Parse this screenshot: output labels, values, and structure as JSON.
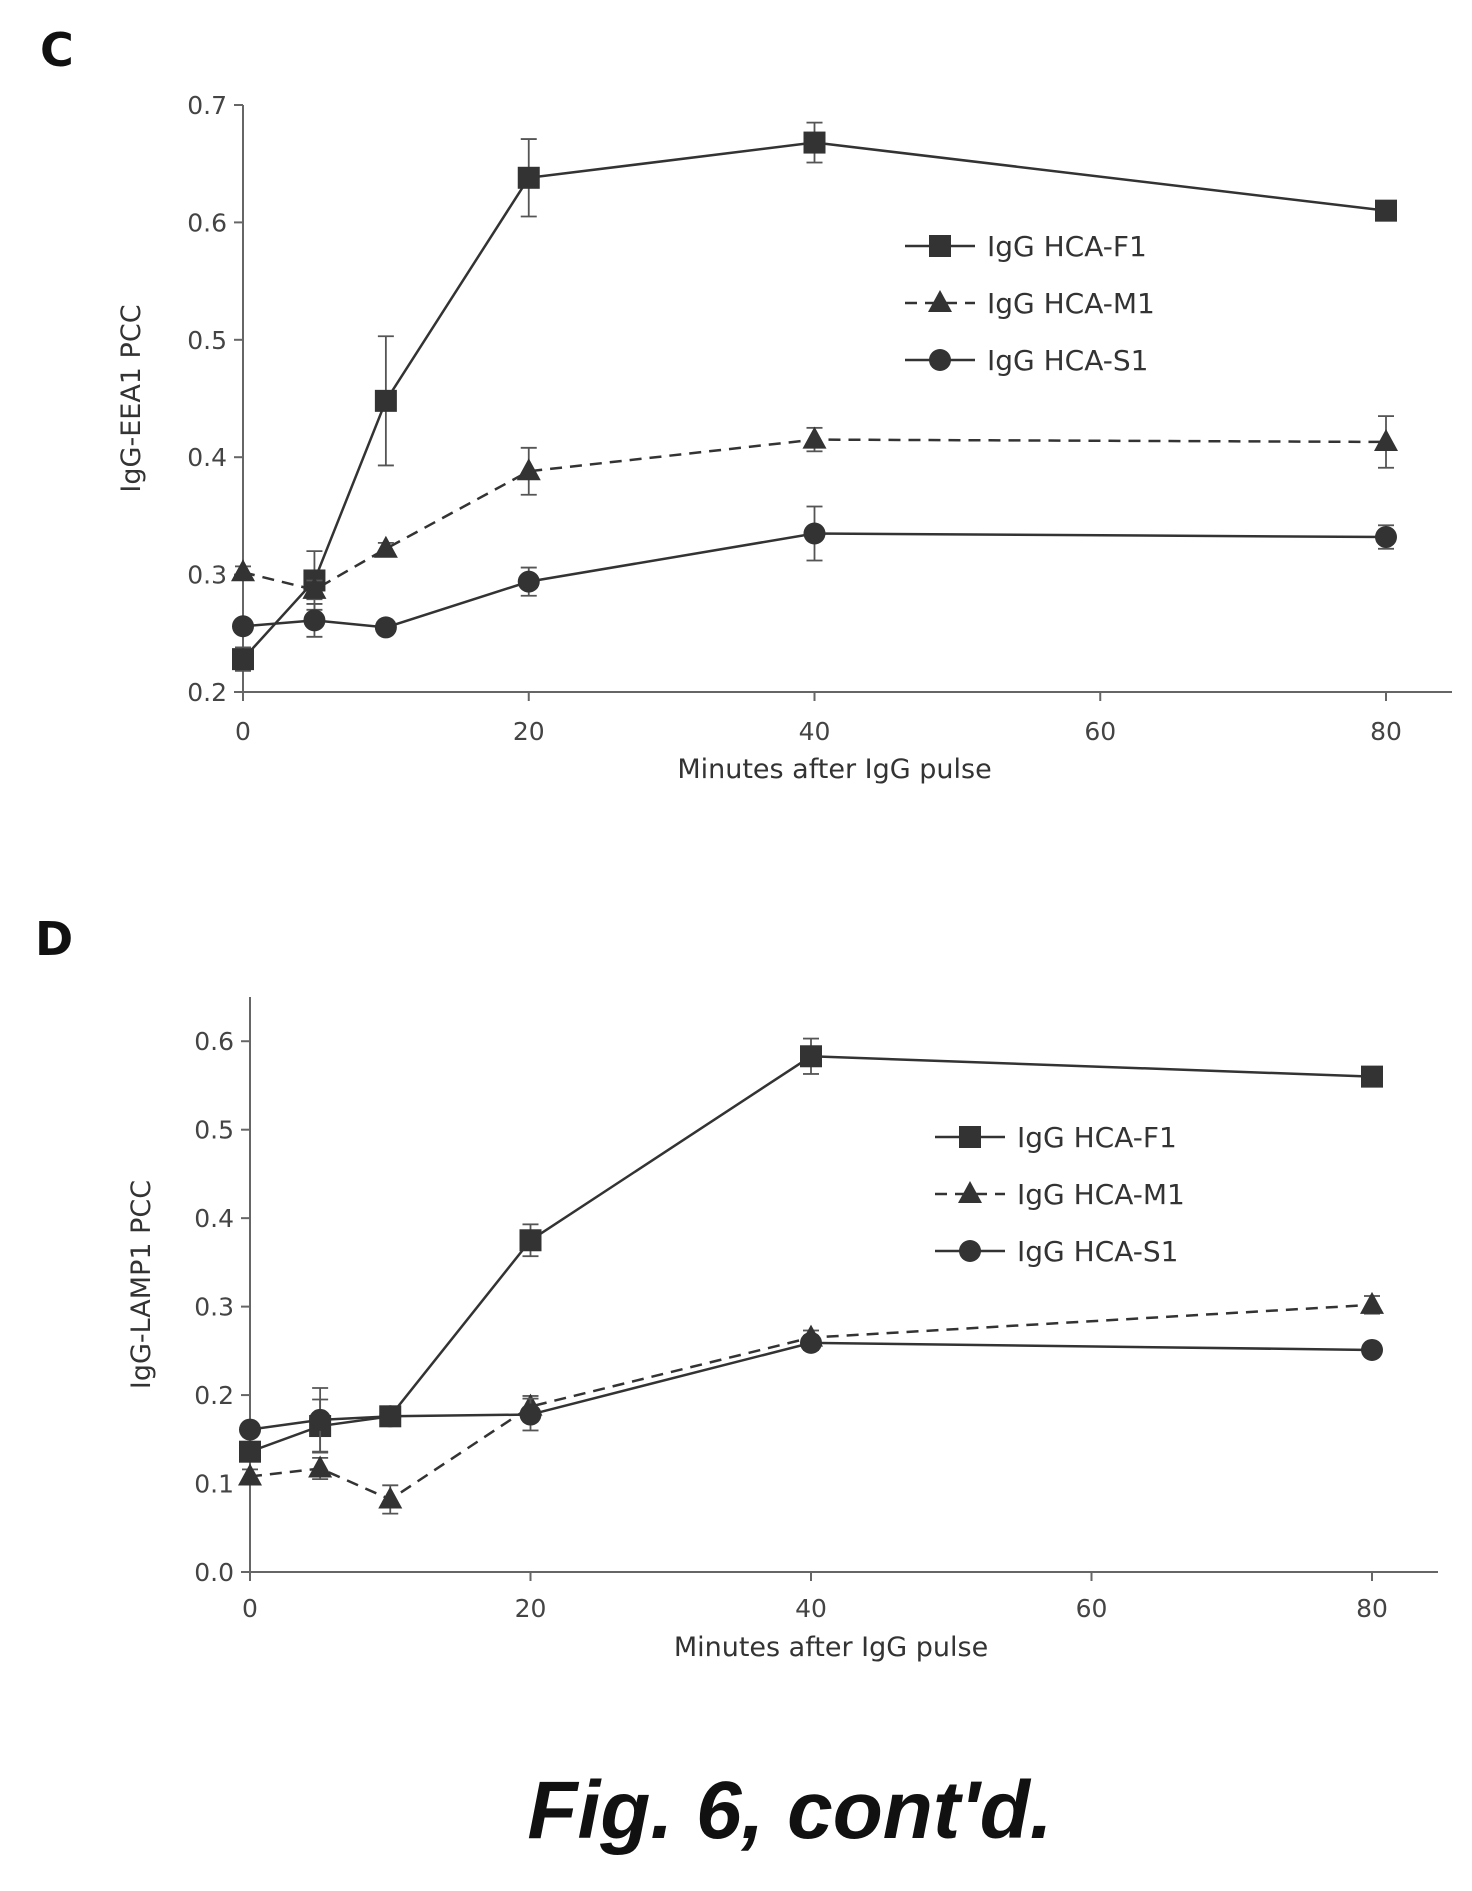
{
  "figure_caption": "Fig. 6, cont'd.",
  "chart_data": [
    {
      "panel": "C",
      "type": "line",
      "xlabel": "Minutes after IgG pulse",
      "ylabel": "IgG-EEA1 PCC",
      "xlim": [
        0,
        85
      ],
      "ylim": [
        0.2,
        0.7
      ],
      "xticks": [
        0,
        20,
        40,
        60,
        80
      ],
      "yticks": [
        0.2,
        0.3,
        0.4,
        0.5,
        0.6,
        0.7
      ],
      "ytick_labels": [
        "0.2",
        "0.3",
        "0.4",
        "0.5",
        "0.6",
        "0.7"
      ],
      "xtick_labels": [
        "0",
        "20",
        "40",
        "60",
        "80"
      ],
      "grid": false,
      "legend_position": "top-right",
      "x": [
        0,
        5,
        10,
        20,
        40,
        80
      ],
      "series": [
        {
          "name": "IgG HCA-F1",
          "marker": "square",
          "dash": "solid",
          "values": [
            0.228,
            0.295,
            0.448,
            0.638,
            0.668,
            0.61
          ],
          "errors": [
            0.01,
            0.025,
            0.055,
            0.033,
            0.017,
            0.008
          ]
        },
        {
          "name": "IgG HCA-M1",
          "marker": "triangle",
          "dash": "dashed",
          "values": [
            0.302,
            0.287,
            0.322,
            0.388,
            0.415,
            0.413
          ],
          "errors": [
            0.005,
            0.008,
            0.005,
            0.02,
            0.01,
            0.022
          ]
        },
        {
          "name": "IgG HCA-S1",
          "marker": "circle",
          "dash": "solid",
          "values": [
            0.256,
            0.261,
            0.255,
            0.294,
            0.335,
            0.332
          ],
          "errors": [
            0.005,
            0.014,
            0.005,
            0.012,
            0.023,
            0.01
          ]
        }
      ]
    },
    {
      "panel": "D",
      "type": "line",
      "xlabel": "Minutes after IgG pulse",
      "ylabel": "IgG-LAMP1 PCC",
      "xlim": [
        0,
        85
      ],
      "ylim": [
        0,
        0.65
      ],
      "xticks": [
        0,
        20,
        40,
        60,
        80
      ],
      "yticks": [
        0.0,
        0.1,
        0.2,
        0.3,
        0.4,
        0.5,
        0.6
      ],
      "ytick_labels": [
        "0.0",
        "0.1",
        "0.2",
        "0.3",
        "0.4",
        "0.5",
        "0.6"
      ],
      "xtick_labels": [
        "0",
        "20",
        "40",
        "60",
        "80"
      ],
      "grid": false,
      "legend_position": "right",
      "x": [
        0,
        5,
        10,
        20,
        40,
        80
      ],
      "series": [
        {
          "name": "IgG HCA-F1",
          "marker": "square",
          "dash": "solid",
          "values": [
            0.136,
            0.165,
            0.176,
            0.375,
            0.583,
            0.56
          ],
          "errors": [
            0.008,
            0.03,
            0.008,
            0.018,
            0.02,
            0.008
          ]
        },
        {
          "name": "IgG HCA-M1",
          "marker": "triangle",
          "dash": "dashed",
          "values": [
            0.108,
            0.117,
            0.082,
            0.187,
            0.265,
            0.302
          ],
          "errors": [
            0.008,
            0.012,
            0.016,
            0.012,
            0.008,
            0.01
          ]
        },
        {
          "name": "IgG HCA-S1",
          "marker": "circle",
          "dash": "solid",
          "values": [
            0.161,
            0.172,
            0.176,
            0.178,
            0.259,
            0.251
          ],
          "errors": [
            0.006,
            0.036,
            0.006,
            0.018,
            0.008,
            0.006
          ]
        }
      ]
    }
  ]
}
